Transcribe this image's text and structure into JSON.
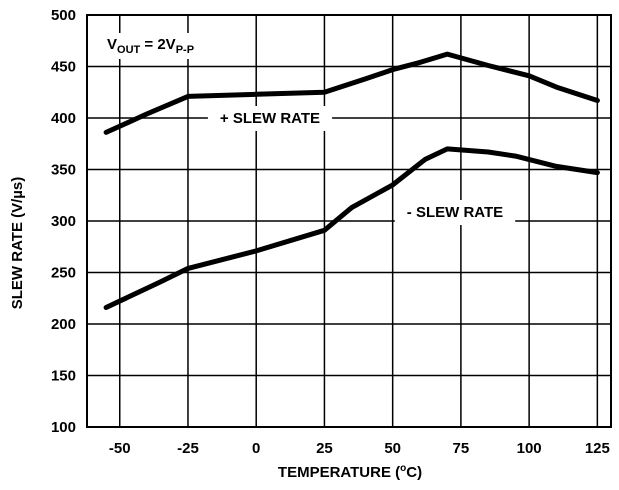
{
  "chart_data": {
    "type": "line",
    "title": "",
    "xlabel_main": "TEMPERATURE (",
    "xlabel_sup": "o",
    "xlabel_tail": "C)",
    "ylabel": "SLEW RATE (V/µs)",
    "xlim": [
      -62,
      130
    ],
    "ylim": [
      100,
      500
    ],
    "grid": true,
    "x_ticks": [
      -50,
      -25,
      0,
      25,
      50,
      75,
      100,
      125
    ],
    "y_ticks": [
      100,
      150,
      200,
      250,
      300,
      350,
      400,
      450,
      500
    ],
    "annotation": {
      "main": "V",
      "sub1": "OUT",
      "mid": " = 2V",
      "sub2": "P-P"
    },
    "series": [
      {
        "name": "+ SLEW RATE",
        "x": [
          -55,
          -40,
          -25,
          0,
          25,
          40,
          50,
          60,
          70,
          85,
          100,
          110,
          125
        ],
        "y": [
          386,
          404,
          421,
          423,
          425,
          438,
          447,
          454,
          462,
          451,
          441,
          430,
          417
        ]
      },
      {
        "name": "- SLEW RATE",
        "x": [
          -55,
          -35,
          -25,
          0,
          25,
          35,
          50,
          62,
          70,
          85,
          95,
          110,
          125
        ],
        "y": [
          216,
          241,
          254,
          271,
          291,
          313,
          335,
          360,
          370,
          367,
          363,
          353,
          347
        ]
      }
    ]
  }
}
